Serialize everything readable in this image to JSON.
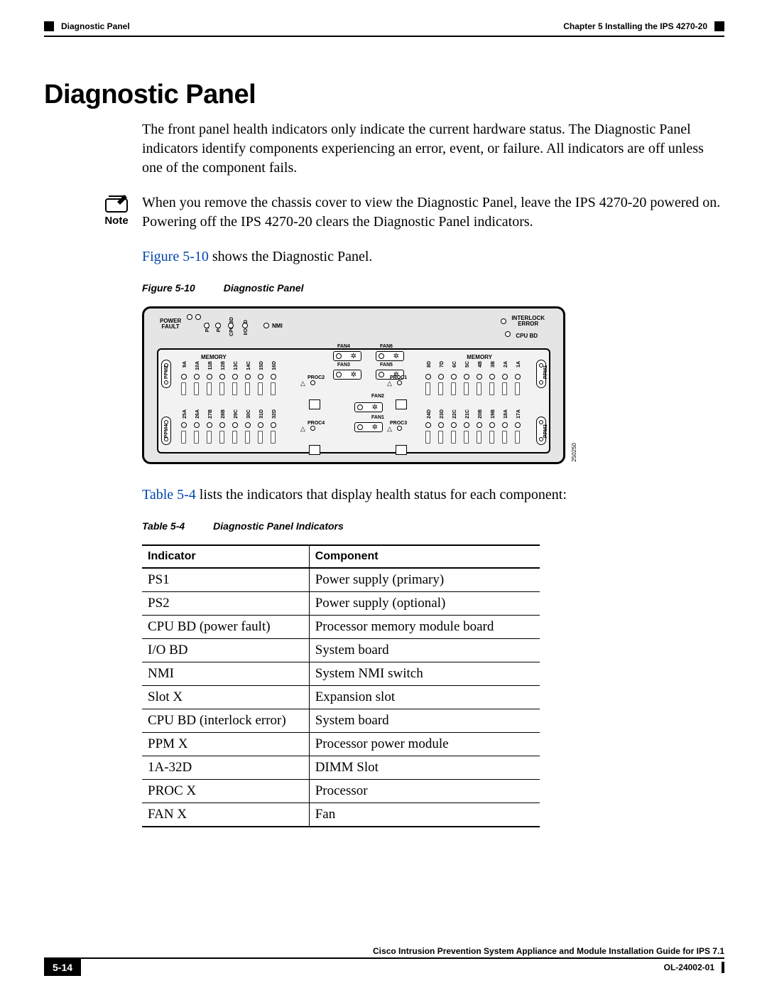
{
  "header": {
    "section_label": "Diagnostic Panel",
    "chapter_label": "Chapter 5      Installing the IPS 4270-20"
  },
  "title": "Diagnostic Panel",
  "intro_para": "The front panel health indicators only indicate the current hardware status. The Diagnostic Panel indicators identify components experiencing an error, event, or failure. All indicators are off unless one of the component fails.",
  "note": {
    "label": "Note",
    "text": "When you remove the chassis cover to view the Diagnostic Panel, leave the IPS 4270-20 powered on. Powering off the IPS 4270-20 clears the Diagnostic Panel indicators."
  },
  "figure_ref": {
    "link": "Figure 5-10",
    "rest": " shows the Diagnostic Panel."
  },
  "figure_caption": {
    "num": "Figure 5-10",
    "title": "Diagnostic Panel"
  },
  "figure": {
    "figure_id": "250250",
    "top_labels": {
      "power_fault": "POWER\nFAULT",
      "ps1": "PS1",
      "ps2": "PS2",
      "cpu_bd": "CPU BD",
      "io_bd": "I/O BD",
      "nmi": "NMI",
      "interlock_error": "INTERLOCK\nERROR",
      "cpu_bd_r": "CPU BD"
    },
    "memory_label": "MEMORY",
    "ppm": [
      "PPM2",
      "PPM4",
      "PPM1",
      "PPM3"
    ],
    "dimm_left_top": [
      "9A",
      "10A",
      "11B",
      "12B",
      "13C",
      "14C",
      "15D",
      "16D"
    ],
    "dimm_left_bot": [
      "25A",
      "26A",
      "27B",
      "28B",
      "29C",
      "30C",
      "31D",
      "32D"
    ],
    "dimm_right_top": [
      "8D",
      "7D",
      "6C",
      "5C",
      "4B",
      "3B",
      "2A",
      "1A"
    ],
    "dimm_right_bot": [
      "24D",
      "23D",
      "22C",
      "21C",
      "20B",
      "19B",
      "18A",
      "17A"
    ],
    "procs": [
      "PROC2",
      "PROC4",
      "PROC1",
      "PROC3"
    ],
    "fans": [
      "FAN4",
      "FAN3",
      "FAN6",
      "FAN5",
      "FAN2",
      "FAN1"
    ]
  },
  "table_ref": {
    "link": "Table 5-4",
    "rest": " lists the indicators that display health status for each component:"
  },
  "table_caption": {
    "num": "Table 5-4",
    "title": "Diagnostic Panel Indicators"
  },
  "table": {
    "headers": [
      "Indicator",
      "Component"
    ],
    "rows": [
      [
        "PS1",
        "Power supply (primary)"
      ],
      [
        "PS2",
        "Power supply (optional)"
      ],
      [
        "CPU BD (power fault)",
        "Processor memory module board"
      ],
      [
        "I/O BD",
        "System board"
      ],
      [
        "NMI",
        "System NMI switch"
      ],
      [
        "Slot X",
        "Expansion slot"
      ],
      [
        "CPU BD (interlock error)",
        "System board"
      ],
      [
        "PPM X",
        "Processor power module"
      ],
      [
        "1A-32D",
        "DIMM Slot"
      ],
      [
        "PROC X",
        "Processor"
      ],
      [
        "FAN X",
        "Fan"
      ]
    ]
  },
  "footer": {
    "book_title": "Cisco Intrusion Prevention System Appliance and Module Installation Guide for IPS 7.1",
    "page_num": "5-14",
    "doc_id": "OL-24002-01"
  },
  "colors": {
    "link": "#0046ad"
  }
}
